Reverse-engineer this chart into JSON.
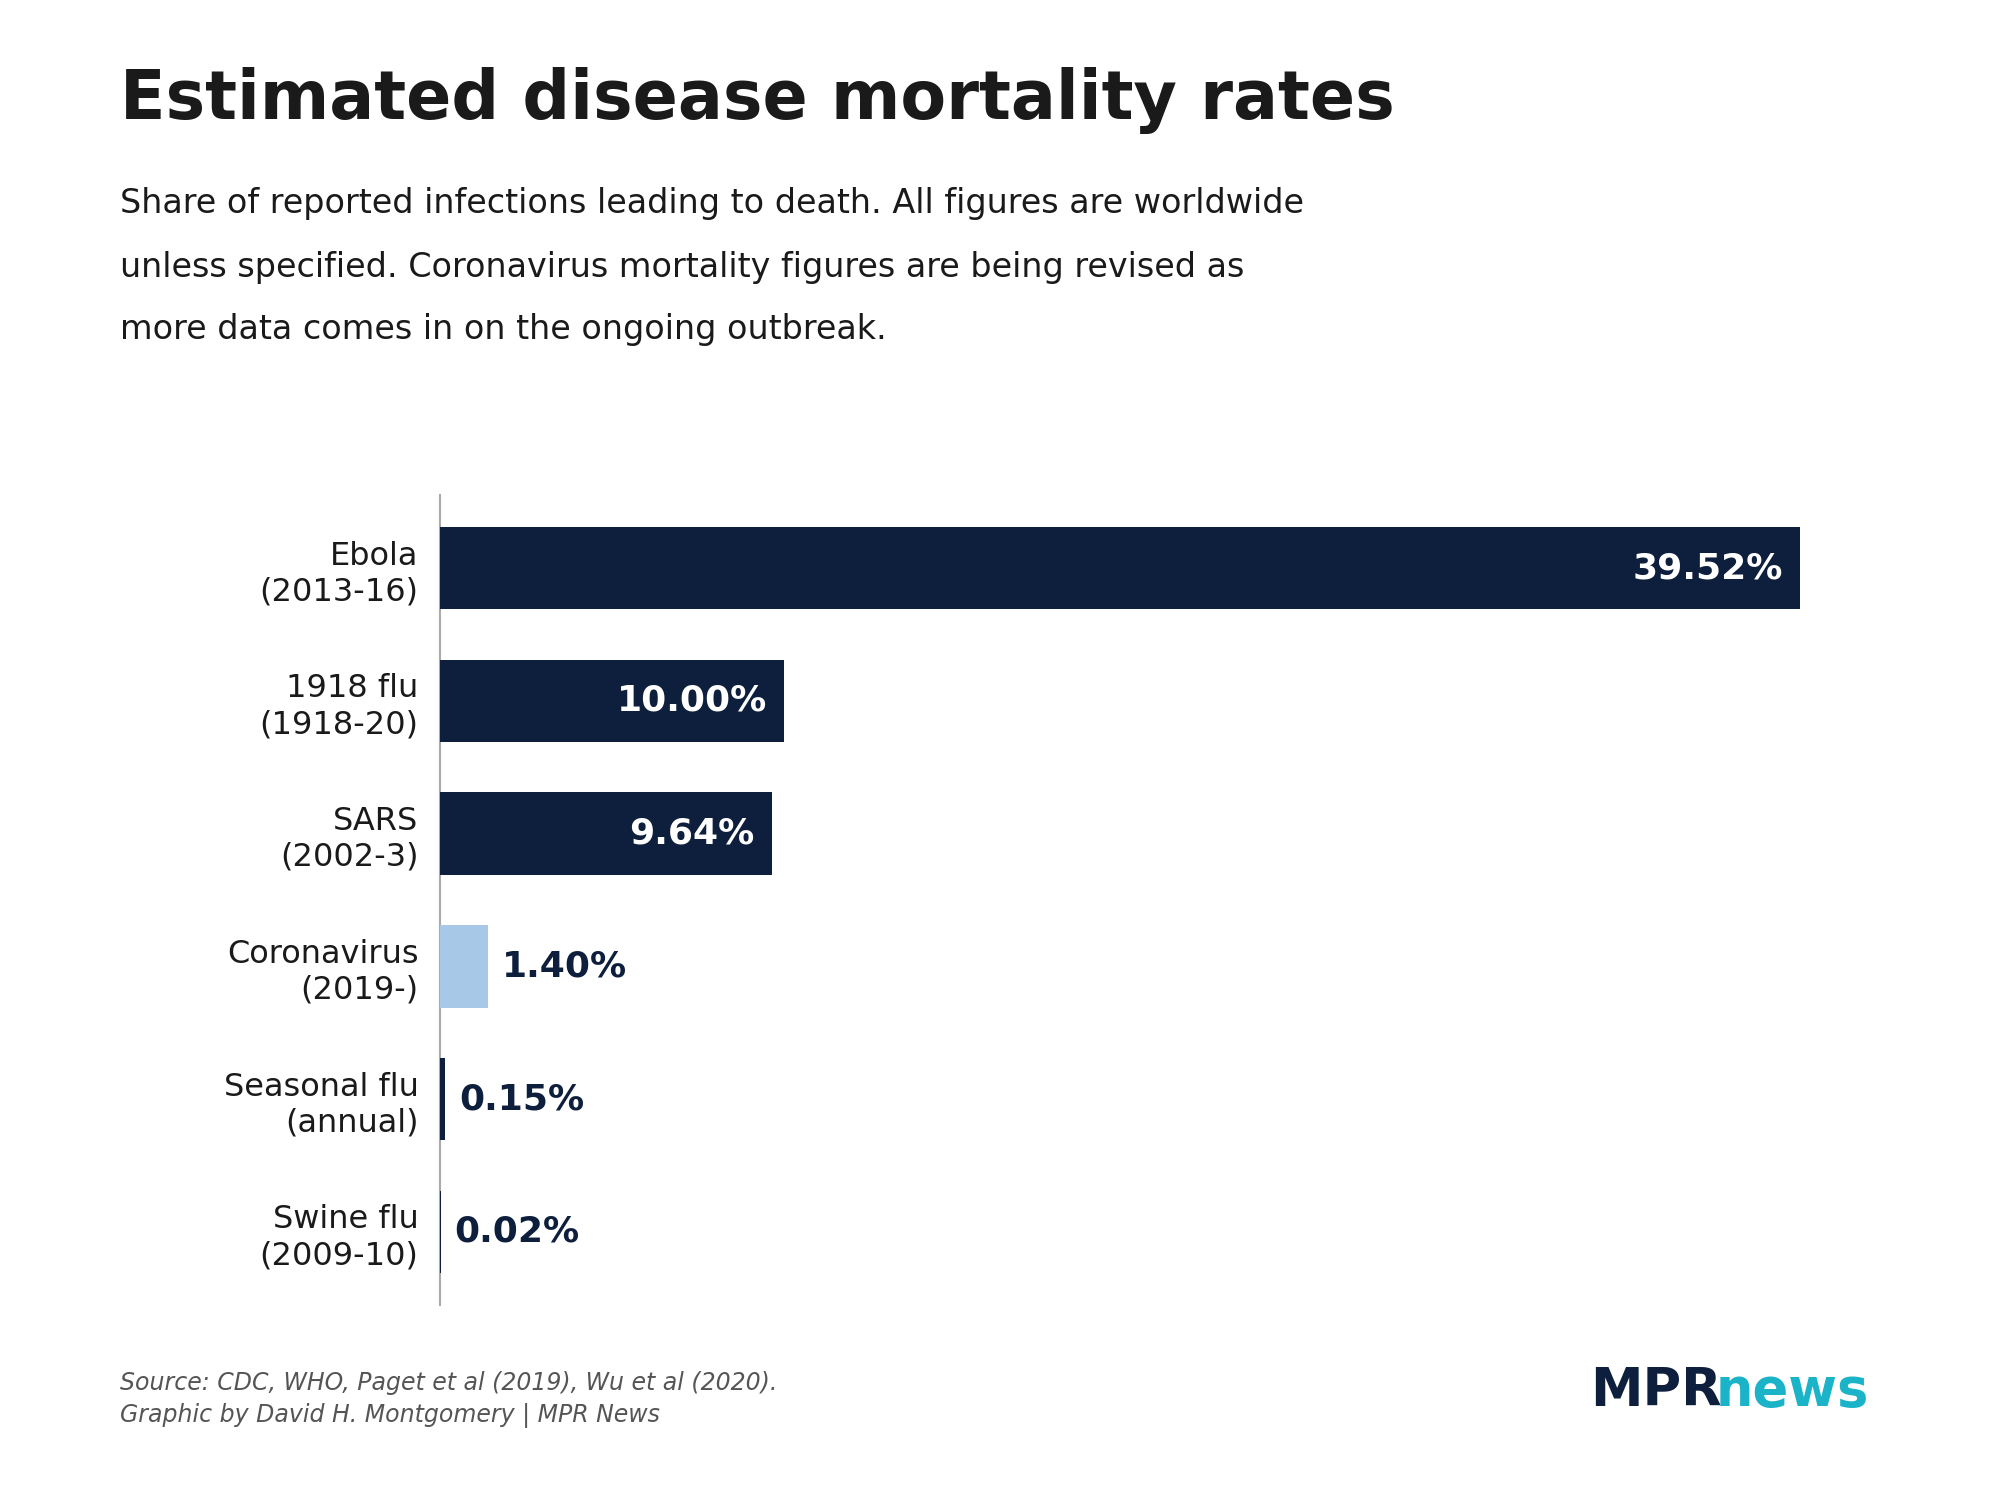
{
  "title": "Estimated disease mortality rates",
  "subtitle_lines": [
    "Share of reported infections leading to death. All figures are worldwide",
    "unless specified. Coronavirus mortality figures are being revised as",
    "more data comes in on the ongoing outbreak."
  ],
  "categories": [
    "Ebola\n(2013-16)",
    "1918 flu\n(1918-20)",
    "SARS\n(2002-3)",
    "Coronavirus\n(2019-)",
    "Seasonal flu\n(annual)",
    "Swine flu\n(2009-10)"
  ],
  "values": [
    39.52,
    10.0,
    9.64,
    1.4,
    0.15,
    0.02
  ],
  "labels": [
    "39.52%",
    "10.00%",
    "9.64%",
    "1.40%",
    "0.15%",
    "0.02%"
  ],
  "bar_colors": [
    "#0d1f3c",
    "#0d1f3c",
    "#0d1f3c",
    "#a8c8e8",
    "#0d1f3c",
    "#0d1f3c"
  ],
  "label_colors": [
    "#ffffff",
    "#ffffff",
    "#ffffff",
    "#0d1f3c",
    "#0d1f3c",
    "#0d1f3c"
  ],
  "title_fontsize": 48,
  "subtitle_fontsize": 24,
  "label_fontsize": 26,
  "tick_fontsize": 23,
  "source_fontsize": 17,
  "mpr_fontsize": 38,
  "source_text_line1": "Source: CDC, WHO, Paget et al (2019), Wu et al (2020).",
  "source_text_line2": "Graphic by David H. Montgomery | MPR News",
  "mpr_text_mpr": "MPR",
  "mpr_text_news": "news",
  "mpr_color_mpr": "#0d1f3c",
  "mpr_color_news": "#1ab3c8",
  "background_color": "#ffffff",
  "xlim": [
    0,
    43
  ],
  "figsize": [
    20.0,
    15.0
  ],
  "dpi": 100
}
